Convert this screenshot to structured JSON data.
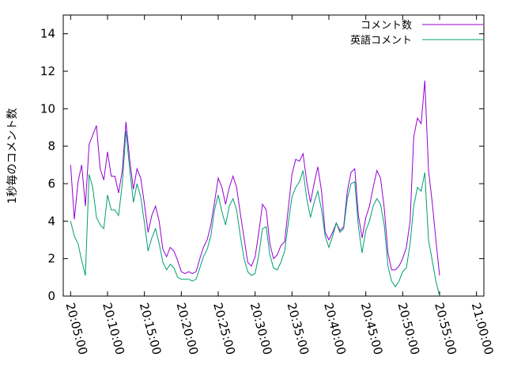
{
  "chart_data": {
    "type": "line",
    "title": "",
    "xlabel": "",
    "ylabel": "1秒毎のコメント数",
    "xlim": [
      "20:04:00",
      "21:01:00"
    ],
    "ylim": [
      0,
      15
    ],
    "grid": false,
    "legend_position": "top-right",
    "x_ticks": [
      "20:05:00",
      "20:10:00",
      "20:15:00",
      "20:20:00",
      "20:25:00",
      "20:30:00",
      "20:35:00",
      "20:40:00",
      "20:45:00",
      "20:50:00",
      "20:55:00",
      "21:00:00"
    ],
    "y_ticks": [
      "0",
      "2",
      "4",
      "6",
      "8",
      "10",
      "12",
      "14"
    ],
    "series": [
      {
        "name": "コメント数",
        "color": "#9400d3",
        "points": [
          [
            "20:05:00",
            7.0
          ],
          [
            "20:05:30",
            4.1
          ],
          [
            "20:06:00",
            6.1
          ],
          [
            "20:06:30",
            7.0
          ],
          [
            "20:07:00",
            4.8
          ],
          [
            "20:07:30",
            8.1
          ],
          [
            "20:08:00",
            8.6
          ],
          [
            "20:08:30",
            9.1
          ],
          [
            "20:09:00",
            6.8
          ],
          [
            "20:09:30",
            6.2
          ],
          [
            "20:10:00",
            7.7
          ],
          [
            "20:10:30",
            6.4
          ],
          [
            "20:11:00",
            6.4
          ],
          [
            "20:11:30",
            5.5
          ],
          [
            "20:12:00",
            6.7
          ],
          [
            "20:12:30",
            9.3
          ],
          [
            "20:13:00",
            7.3
          ],
          [
            "20:13:30",
            5.7
          ],
          [
            "20:14:00",
            6.8
          ],
          [
            "20:14:30",
            6.3
          ],
          [
            "20:15:00",
            4.9
          ],
          [
            "20:15:30",
            3.4
          ],
          [
            "20:16:00",
            4.3
          ],
          [
            "20:16:30",
            4.8
          ],
          [
            "20:17:00",
            4.0
          ],
          [
            "20:17:30",
            2.5
          ],
          [
            "20:18:00",
            2.1
          ],
          [
            "20:18:30",
            2.6
          ],
          [
            "20:19:00",
            2.4
          ],
          [
            "20:19:30",
            1.9
          ],
          [
            "20:20:00",
            1.3
          ],
          [
            "20:20:30",
            1.2
          ],
          [
            "20:21:00",
            1.3
          ],
          [
            "20:21:30",
            1.2
          ],
          [
            "20:22:00",
            1.3
          ],
          [
            "20:22:30",
            2.0
          ],
          [
            "20:23:00",
            2.6
          ],
          [
            "20:23:30",
            3.0
          ],
          [
            "20:24:00",
            3.8
          ],
          [
            "20:24:30",
            5.0
          ],
          [
            "20:25:00",
            6.3
          ],
          [
            "20:25:30",
            5.8
          ],
          [
            "20:26:00",
            4.9
          ],
          [
            "20:26:30",
            5.8
          ],
          [
            "20:27:00",
            6.4
          ],
          [
            "20:27:30",
            5.8
          ],
          [
            "20:28:00",
            4.4
          ],
          [
            "20:28:30",
            3.1
          ],
          [
            "20:29:00",
            1.8
          ],
          [
            "20:29:30",
            1.6
          ],
          [
            "20:30:00",
            2.1
          ],
          [
            "20:30:30",
            3.4
          ],
          [
            "20:31:00",
            4.9
          ],
          [
            "20:31:30",
            4.6
          ],
          [
            "20:32:00",
            2.8
          ],
          [
            "20:32:30",
            2.0
          ],
          [
            "20:33:00",
            2.2
          ],
          [
            "20:33:30",
            2.7
          ],
          [
            "20:34:00",
            2.9
          ],
          [
            "20:34:30",
            4.7
          ],
          [
            "20:35:00",
            6.5
          ],
          [
            "20:35:30",
            7.3
          ],
          [
            "20:36:00",
            7.2
          ],
          [
            "20:36:30",
            7.6
          ],
          [
            "20:37:00",
            6.1
          ],
          [
            "20:37:30",
            5.0
          ],
          [
            "20:38:00",
            6.0
          ],
          [
            "20:38:30",
            6.9
          ],
          [
            "20:39:00",
            5.6
          ],
          [
            "20:39:30",
            3.4
          ],
          [
            "20:40:00",
            3.0
          ],
          [
            "20:40:30",
            3.4
          ],
          [
            "20:41:00",
            3.9
          ],
          [
            "20:41:30",
            3.5
          ],
          [
            "20:42:00",
            3.7
          ],
          [
            "20:42:30",
            5.6
          ],
          [
            "20:43:00",
            6.6
          ],
          [
            "20:43:30",
            6.8
          ],
          [
            "20:44:00",
            4.3
          ],
          [
            "20:44:30",
            3.1
          ],
          [
            "20:45:00",
            4.2
          ],
          [
            "20:45:30",
            4.8
          ],
          [
            "20:46:00",
            5.8
          ],
          [
            "20:46:30",
            6.7
          ],
          [
            "20:47:00",
            6.3
          ],
          [
            "20:47:30",
            4.7
          ],
          [
            "20:48:00",
            2.3
          ],
          [
            "20:48:30",
            1.4
          ],
          [
            "20:49:00",
            1.4
          ],
          [
            "20:49:30",
            1.6
          ],
          [
            "20:50:00",
            2.0
          ],
          [
            "20:50:30",
            2.6
          ],
          [
            "20:51:00",
            4.0
          ],
          [
            "20:51:30",
            8.5
          ],
          [
            "20:52:00",
            9.5
          ],
          [
            "20:52:30",
            9.2
          ],
          [
            "20:53:00",
            11.5
          ],
          [
            "20:53:30",
            6.7
          ],
          [
            "20:54:00",
            5.0
          ],
          [
            "20:54:30",
            3.0
          ],
          [
            "20:55:00",
            1.1
          ]
        ]
      },
      {
        "name": "英語コメント",
        "color": "#009e73",
        "points": [
          [
            "20:05:00",
            4.0
          ],
          [
            "20:05:30",
            3.2
          ],
          [
            "20:06:00",
            2.8
          ],
          [
            "20:06:30",
            1.9
          ],
          [
            "20:07:00",
            1.1
          ],
          [
            "20:07:30",
            6.5
          ],
          [
            "20:08:00",
            5.8
          ],
          [
            "20:08:30",
            4.2
          ],
          [
            "20:09:00",
            3.8
          ],
          [
            "20:09:30",
            3.6
          ],
          [
            "20:10:00",
            5.4
          ],
          [
            "20:10:30",
            4.6
          ],
          [
            "20:11:00",
            4.6
          ],
          [
            "20:11:30",
            4.3
          ],
          [
            "20:12:00",
            6.0
          ],
          [
            "20:12:30",
            8.8
          ],
          [
            "20:13:00",
            6.8
          ],
          [
            "20:13:30",
            5.0
          ],
          [
            "20:14:00",
            6.0
          ],
          [
            "20:14:30",
            5.3
          ],
          [
            "20:15:00",
            3.9
          ],
          [
            "20:15:30",
            2.4
          ],
          [
            "20:16:00",
            3.1
          ],
          [
            "20:16:30",
            3.6
          ],
          [
            "20:17:00",
            2.8
          ],
          [
            "20:17:30",
            1.8
          ],
          [
            "20:18:00",
            1.4
          ],
          [
            "20:18:30",
            1.7
          ],
          [
            "20:19:00",
            1.5
          ],
          [
            "20:19:30",
            1.0
          ],
          [
            "20:20:00",
            0.9
          ],
          [
            "20:20:30",
            0.9
          ],
          [
            "20:21:00",
            0.9
          ],
          [
            "20:21:30",
            0.8
          ],
          [
            "20:22:00",
            0.9
          ],
          [
            "20:22:30",
            1.5
          ],
          [
            "20:23:00",
            2.1
          ],
          [
            "20:23:30",
            2.5
          ],
          [
            "20:24:00",
            3.2
          ],
          [
            "20:24:30",
            4.6
          ],
          [
            "20:25:00",
            5.4
          ],
          [
            "20:25:30",
            4.5
          ],
          [
            "20:26:00",
            3.8
          ],
          [
            "20:26:30",
            4.8
          ],
          [
            "20:27:00",
            5.2
          ],
          [
            "20:27:30",
            4.6
          ],
          [
            "20:28:00",
            3.2
          ],
          [
            "20:28:30",
            2.0
          ],
          [
            "20:29:00",
            1.3
          ],
          [
            "20:29:30",
            1.1
          ],
          [
            "20:30:00",
            1.2
          ],
          [
            "20:30:30",
            2.2
          ],
          [
            "20:31:00",
            3.6
          ],
          [
            "20:31:30",
            3.7
          ],
          [
            "20:32:00",
            2.2
          ],
          [
            "20:32:30",
            1.5
          ],
          [
            "20:33:00",
            1.4
          ],
          [
            "20:33:30",
            1.8
          ],
          [
            "20:34:00",
            2.4
          ],
          [
            "20:34:30",
            3.9
          ],
          [
            "20:35:00",
            5.3
          ],
          [
            "20:35:30",
            5.8
          ],
          [
            "20:36:00",
            6.1
          ],
          [
            "20:36:30",
            6.7
          ],
          [
            "20:37:00",
            5.2
          ],
          [
            "20:37:30",
            4.2
          ],
          [
            "20:38:00",
            5.0
          ],
          [
            "20:38:30",
            5.6
          ],
          [
            "20:39:00",
            4.6
          ],
          [
            "20:39:30",
            3.2
          ],
          [
            "20:40:00",
            2.6
          ],
          [
            "20:40:30",
            3.2
          ],
          [
            "20:41:00",
            3.9
          ],
          [
            "20:41:30",
            3.4
          ],
          [
            "20:42:00",
            3.6
          ],
          [
            "20:42:30",
            5.2
          ],
          [
            "20:43:00",
            6.0
          ],
          [
            "20:43:30",
            6.1
          ],
          [
            "20:44:00",
            3.7
          ],
          [
            "20:44:30",
            2.3
          ],
          [
            "20:45:00",
            3.5
          ],
          [
            "20:45:30",
            4.0
          ],
          [
            "20:46:00",
            4.8
          ],
          [
            "20:46:30",
            5.2
          ],
          [
            "20:47:00",
            4.9
          ],
          [
            "20:47:30",
            3.8
          ],
          [
            "20:48:00",
            1.6
          ],
          [
            "20:48:30",
            0.8
          ],
          [
            "20:49:00",
            0.5
          ],
          [
            "20:49:30",
            0.8
          ],
          [
            "20:50:00",
            1.3
          ],
          [
            "20:50:30",
            1.5
          ],
          [
            "20:51:00",
            2.8
          ],
          [
            "20:51:30",
            4.8
          ],
          [
            "20:52:00",
            5.8
          ],
          [
            "20:52:30",
            5.6
          ],
          [
            "20:53:00",
            6.6
          ],
          [
            "20:53:30",
            3.0
          ],
          [
            "20:54:00",
            1.9
          ],
          [
            "20:54:30",
            0.8
          ],
          [
            "20:55:00",
            0.0
          ]
        ]
      }
    ]
  }
}
